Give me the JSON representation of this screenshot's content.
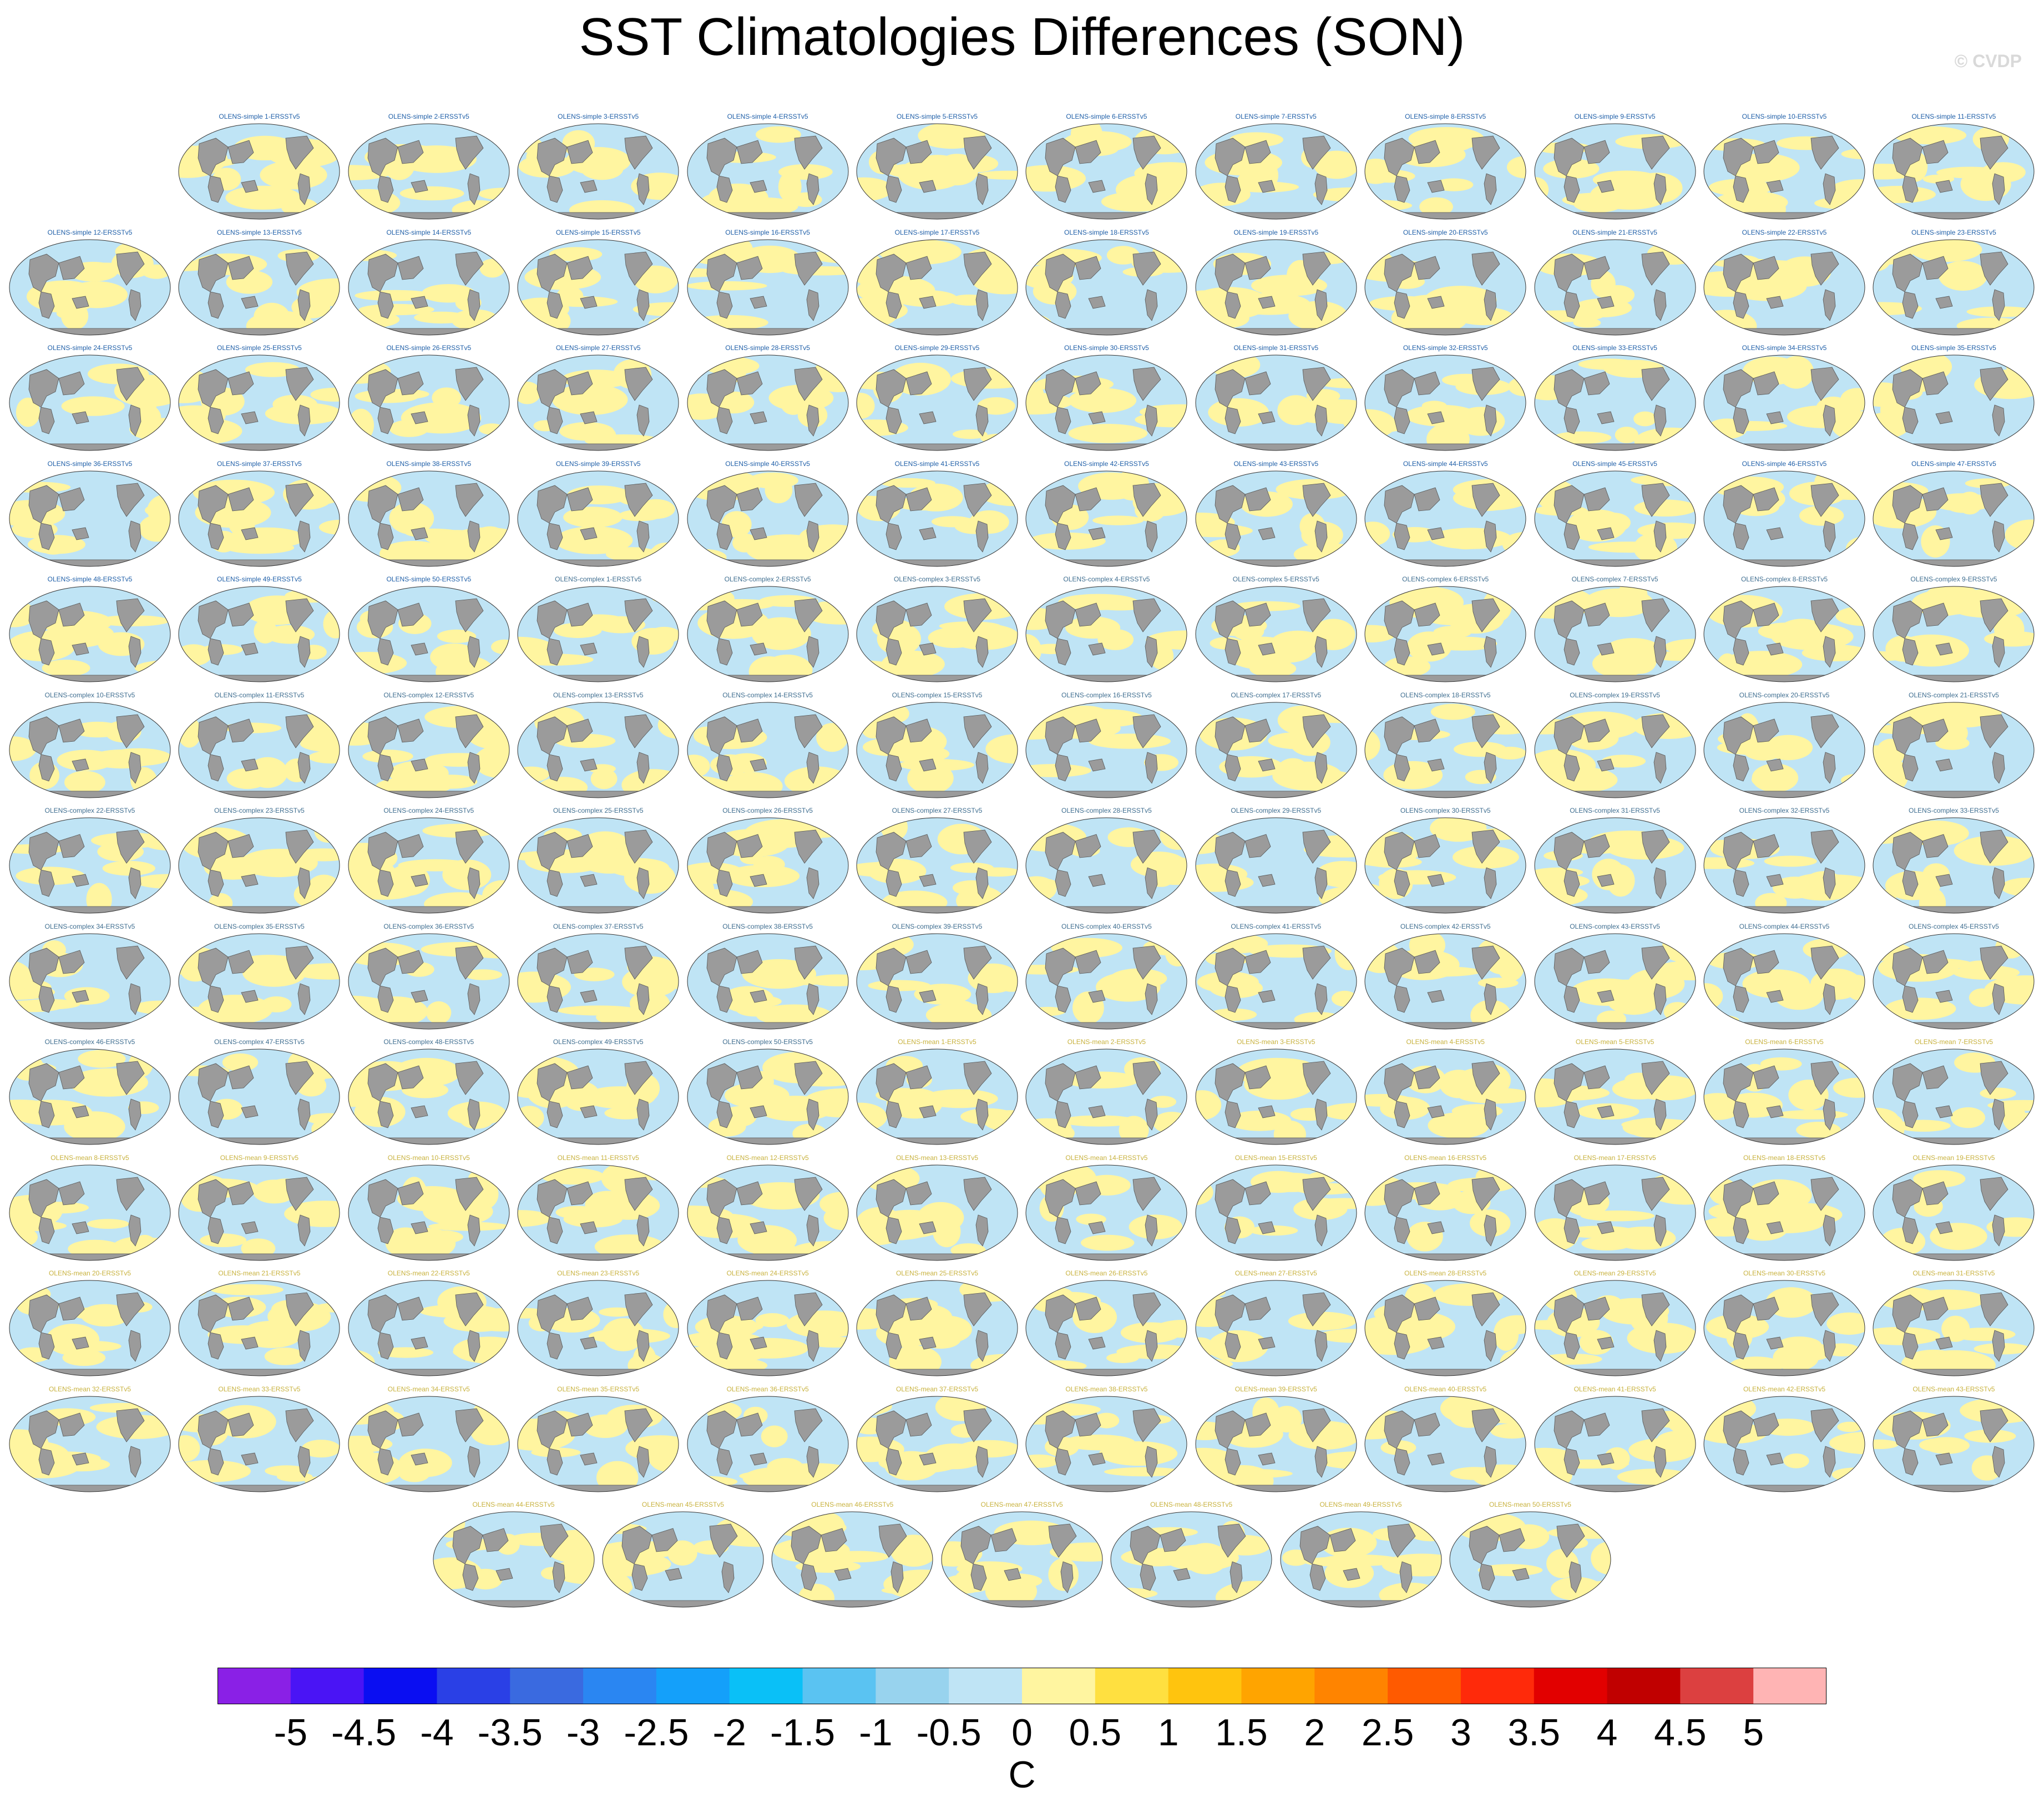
{
  "title": "SST Climatologies Differences (SON)",
  "watermark": "© CVDP",
  "chart_data": {
    "type": "heatmap",
    "title": "SST Climatologies Differences (SON)",
    "panel_grid": "13 rows; row 1 has 11 panels, rows 2-12 have 12 panels, row 13 has 7 centered panels",
    "map_projection": "global Robinson",
    "panel_series": [
      {
        "name_prefix": "OLENS-simple",
        "members": 50,
        "title_color": "#1f5fa8"
      },
      {
        "name_prefix": "OLENS-complex",
        "members": 50,
        "title_color": "#3f6e90"
      },
      {
        "name_prefix": "OLENS-mean",
        "members": 50,
        "title_color": "#c8b23e"
      }
    ],
    "comparison": "ERSSTv5",
    "colorbar": {
      "levels": [
        "-5",
        "-4.5",
        "-4",
        "-3.5",
        "-3",
        "-2.5",
        "-2",
        "-1.5",
        "-1",
        "-0.5",
        "0",
        "0.5",
        "1",
        "1.5",
        "2",
        "2.5",
        "3",
        "3.5",
        "4",
        "4.5",
        "5"
      ],
      "colors": [
        "#8a20e6",
        "#4a14f5",
        "#0a0ef2",
        "#2a40e6",
        "#3a6ae0",
        "#2a86f2",
        "#14a0fa",
        "#0ac0f7",
        "#5ac3f2",
        "#98d3ee",
        "#bfe4f5",
        "#fff5a0",
        "#ffe040",
        "#ffc40e",
        "#ffa400",
        "#ff8400",
        "#ff5a00",
        "#ff2a0a",
        "#e20000",
        "#c00000",
        "#dc4040",
        "#ffb4b4"
      ],
      "unit": "C",
      "dominant_colors": [
        "#bfe4f5",
        "#fff5a0"
      ]
    },
    "map_colors": {
      "land": "#9b9b9b",
      "positive": "#fff5a0",
      "negative": "#bfe4f5"
    }
  },
  "panels": [
    {
      "title": "OLENS-simple 1-ERSSTv5"
    },
    {
      "title": "OLENS-simple 2-ERSSTv5"
    },
    {
      "title": "OLENS-simple 3-ERSSTv5"
    },
    {
      "title": "OLENS-simple 4-ERSSTv5"
    },
    {
      "title": "OLENS-simple 5-ERSSTv5"
    },
    {
      "title": "OLENS-simple 6-ERSSTv5"
    },
    {
      "title": "OLENS-simple 7-ERSSTv5"
    },
    {
      "title": "OLENS-simple 8-ERSSTv5"
    },
    {
      "title": "OLENS-simple 9-ERSSTv5"
    },
    {
      "title": "OLENS-simple 10-ERSSTv5"
    },
    {
      "title": "OLENS-simple 11-ERSSTv5"
    },
    {
      "title": "OLENS-simple 12-ERSSTv5"
    },
    {
      "title": "OLENS-simple 13-ERSSTv5"
    },
    {
      "title": "OLENS-simple 14-ERSSTv5"
    },
    {
      "title": "OLENS-simple 15-ERSSTv5"
    },
    {
      "title": "OLENS-simple 16-ERSSTv5"
    },
    {
      "title": "OLENS-simple 17-ERSSTv5"
    },
    {
      "title": "OLENS-simple 18-ERSSTv5"
    },
    {
      "title": "OLENS-simple 19-ERSSTv5"
    },
    {
      "title": "OLENS-simple 20-ERSSTv5"
    },
    {
      "title": "OLENS-simple 21-ERSSTv5"
    },
    {
      "title": "OLENS-simple 22-ERSSTv5"
    },
    {
      "title": "OLENS-simple 23-ERSSTv5"
    },
    {
      "title": "OLENS-simple 24-ERSSTv5"
    },
    {
      "title": "OLENS-simple 25-ERSSTv5"
    },
    {
      "title": "OLENS-simple 26-ERSSTv5"
    },
    {
      "title": "OLENS-simple 27-ERSSTv5"
    },
    {
      "title": "OLENS-simple 28-ERSSTv5"
    },
    {
      "title": "OLENS-simple 29-ERSSTv5"
    },
    {
      "title": "OLENS-simple 30-ERSSTv5"
    },
    {
      "title": "OLENS-simple 31-ERSSTv5"
    },
    {
      "title": "OLENS-simple 32-ERSSTv5"
    },
    {
      "title": "OLENS-simple 33-ERSSTv5"
    },
    {
      "title": "OLENS-simple 34-ERSSTv5"
    },
    {
      "title": "OLENS-simple 35-ERSSTv5"
    },
    {
      "title": "OLENS-simple 36-ERSSTv5"
    },
    {
      "title": "OLENS-simple 37-ERSSTv5"
    },
    {
      "title": "OLENS-simple 38-ERSSTv5"
    },
    {
      "title": "OLENS-simple 39-ERSSTv5"
    },
    {
      "title": "OLENS-simple 40-ERSSTv5"
    },
    {
      "title": "OLENS-simple 41-ERSSTv5"
    },
    {
      "title": "OLENS-simple 42-ERSSTv5"
    },
    {
      "title": "OLENS-simple 43-ERSSTv5"
    },
    {
      "title": "OLENS-simple 44-ERSSTv5"
    },
    {
      "title": "OLENS-simple 45-ERSSTv5"
    },
    {
      "title": "OLENS-simple 46-ERSSTv5"
    },
    {
      "title": "OLENS-simple 47-ERSSTv5"
    },
    {
      "title": "OLENS-simple 48-ERSSTv5"
    },
    {
      "title": "OLENS-simple 49-ERSSTv5"
    },
    {
      "title": "OLENS-simple 50-ERSSTv5"
    },
    {
      "title": "OLENS-complex 1-ERSSTv5"
    },
    {
      "title": "OLENS-complex 2-ERSSTv5"
    },
    {
      "title": "OLENS-complex 3-ERSSTv5"
    },
    {
      "title": "OLENS-complex 4-ERSSTv5"
    },
    {
      "title": "OLENS-complex 5-ERSSTv5"
    },
    {
      "title": "OLENS-complex 6-ERSSTv5"
    },
    {
      "title": "OLENS-complex 7-ERSSTv5"
    },
    {
      "title": "OLENS-complex 8-ERSSTv5"
    },
    {
      "title": "OLENS-complex 9-ERSSTv5"
    },
    {
      "title": "OLENS-complex 10-ERSSTv5"
    },
    {
      "title": "OLENS-complex 11-ERSSTv5"
    },
    {
      "title": "OLENS-complex 12-ERSSTv5"
    },
    {
      "title": "OLENS-complex 13-ERSSTv5"
    },
    {
      "title": "OLENS-complex 14-ERSSTv5"
    },
    {
      "title": "OLENS-complex 15-ERSSTv5"
    },
    {
      "title": "OLENS-complex 16-ERSSTv5"
    },
    {
      "title": "OLENS-complex 17-ERSSTv5"
    },
    {
      "title": "OLENS-complex 18-ERSSTv5"
    },
    {
      "title": "OLENS-complex 19-ERSSTv5"
    },
    {
      "title": "OLENS-complex 20-ERSSTv5"
    },
    {
      "title": "OLENS-complex 21-ERSSTv5"
    },
    {
      "title": "OLENS-complex 22-ERSSTv5"
    },
    {
      "title": "OLENS-complex 23-ERSSTv5"
    },
    {
      "title": "OLENS-complex 24-ERSSTv5"
    },
    {
      "title": "OLENS-complex 25-ERSSTv5"
    },
    {
      "title": "OLENS-complex 26-ERSSTv5"
    },
    {
      "title": "OLENS-complex 27-ERSSTv5"
    },
    {
      "title": "OLENS-complex 28-ERSSTv5"
    },
    {
      "title": "OLENS-complex 29-ERSSTv5"
    },
    {
      "title": "OLENS-complex 30-ERSSTv5"
    },
    {
      "title": "OLENS-complex 31-ERSSTv5"
    },
    {
      "title": "OLENS-complex 32-ERSSTv5"
    },
    {
      "title": "OLENS-complex 33-ERSSTv5"
    },
    {
      "title": "OLENS-complex 34-ERSSTv5"
    },
    {
      "title": "OLENS-complex 35-ERSSTv5"
    },
    {
      "title": "OLENS-complex 36-ERSSTv5"
    },
    {
      "title": "OLENS-complex 37-ERSSTv5"
    },
    {
      "title": "OLENS-complex 38-ERSSTv5"
    },
    {
      "title": "OLENS-complex 39-ERSSTv5"
    },
    {
      "title": "OLENS-complex 40-ERSSTv5"
    },
    {
      "title": "OLENS-complex 41-ERSSTv5"
    },
    {
      "title": "OLENS-complex 42-ERSSTv5"
    },
    {
      "title": "OLENS-complex 43-ERSSTv5"
    },
    {
      "title": "OLENS-complex 44-ERSSTv5"
    },
    {
      "title": "OLENS-complex 45-ERSSTv5"
    },
    {
      "title": "OLENS-complex 46-ERSSTv5"
    },
    {
      "title": "OLENS-complex 47-ERSSTv5"
    },
    {
      "title": "OLENS-complex 48-ERSSTv5"
    },
    {
      "title": "OLENS-complex 49-ERSSTv5"
    },
    {
      "title": "OLENS-complex 50-ERSSTv5"
    },
    {
      "title": "OLENS-mean 1-ERSSTv5"
    },
    {
      "title": "OLENS-mean 2-ERSSTv5"
    },
    {
      "title": "OLENS-mean 3-ERSSTv5"
    },
    {
      "title": "OLENS-mean 4-ERSSTv5"
    },
    {
      "title": "OLENS-mean 5-ERSSTv5"
    },
    {
      "title": "OLENS-mean 6-ERSSTv5"
    },
    {
      "title": "OLENS-mean 7-ERSSTv5"
    },
    {
      "title": "OLENS-mean 8-ERSSTv5"
    },
    {
      "title": "OLENS-mean 9-ERSSTv5"
    },
    {
      "title": "OLENS-mean 10-ERSSTv5"
    },
    {
      "title": "OLENS-mean 11-ERSSTv5"
    },
    {
      "title": "OLENS-mean 12-ERSSTv5"
    },
    {
      "title": "OLENS-mean 13-ERSSTv5"
    },
    {
      "title": "OLENS-mean 14-ERSSTv5"
    },
    {
      "title": "OLENS-mean 15-ERSSTv5"
    },
    {
      "title": "OLENS-mean 16-ERSSTv5"
    },
    {
      "title": "OLENS-mean 17-ERSSTv5"
    },
    {
      "title": "OLENS-mean 18-ERSSTv5"
    },
    {
      "title": "OLENS-mean 19-ERSSTv5"
    },
    {
      "title": "OLENS-mean 20-ERSSTv5"
    },
    {
      "title": "OLENS-mean 21-ERSSTv5"
    },
    {
      "title": "OLENS-mean 22-ERSSTv5"
    },
    {
      "title": "OLENS-mean 23-ERSSTv5"
    },
    {
      "title": "OLENS-mean 24-ERSSTv5"
    },
    {
      "title": "OLENS-mean 25-ERSSTv5"
    },
    {
      "title": "OLENS-mean 26-ERSSTv5"
    },
    {
      "title": "OLENS-mean 27-ERSSTv5"
    },
    {
      "title": "OLENS-mean 28-ERSSTv5"
    },
    {
      "title": "OLENS-mean 29-ERSSTv5"
    },
    {
      "title": "OLENS-mean 30-ERSSTv5"
    },
    {
      "title": "OLENS-mean 31-ERSSTv5"
    },
    {
      "title": "OLENS-mean 32-ERSSTv5"
    },
    {
      "title": "OLENS-mean 33-ERSSTv5"
    },
    {
      "title": "OLENS-mean 34-ERSSTv5"
    },
    {
      "title": "OLENS-mean 35-ERSSTv5"
    },
    {
      "title": "OLENS-mean 36-ERSSTv5"
    },
    {
      "title": "OLENS-mean 37-ERSSTv5"
    },
    {
      "title": "OLENS-mean 38-ERSSTv5"
    },
    {
      "title": "OLENS-mean 39-ERSSTv5"
    },
    {
      "title": "OLENS-mean 40-ERSSTv5"
    },
    {
      "title": "OLENS-mean 41-ERSSTv5"
    },
    {
      "title": "OLENS-mean 42-ERSSTv5"
    },
    {
      "title": "OLENS-mean 43-ERSSTv5"
    },
    {
      "title": "OLENS-mean 44-ERSSTv5"
    },
    {
      "title": "OLENS-mean 45-ERSSTv5"
    },
    {
      "title": "OLENS-mean 46-ERSSTv5"
    },
    {
      "title": "OLENS-mean 47-ERSSTv5"
    },
    {
      "title": "OLENS-mean 48-ERSSTv5"
    },
    {
      "title": "OLENS-mean 49-ERSSTv5"
    },
    {
      "title": "OLENS-mean 50-ERSSTv5"
    }
  ]
}
